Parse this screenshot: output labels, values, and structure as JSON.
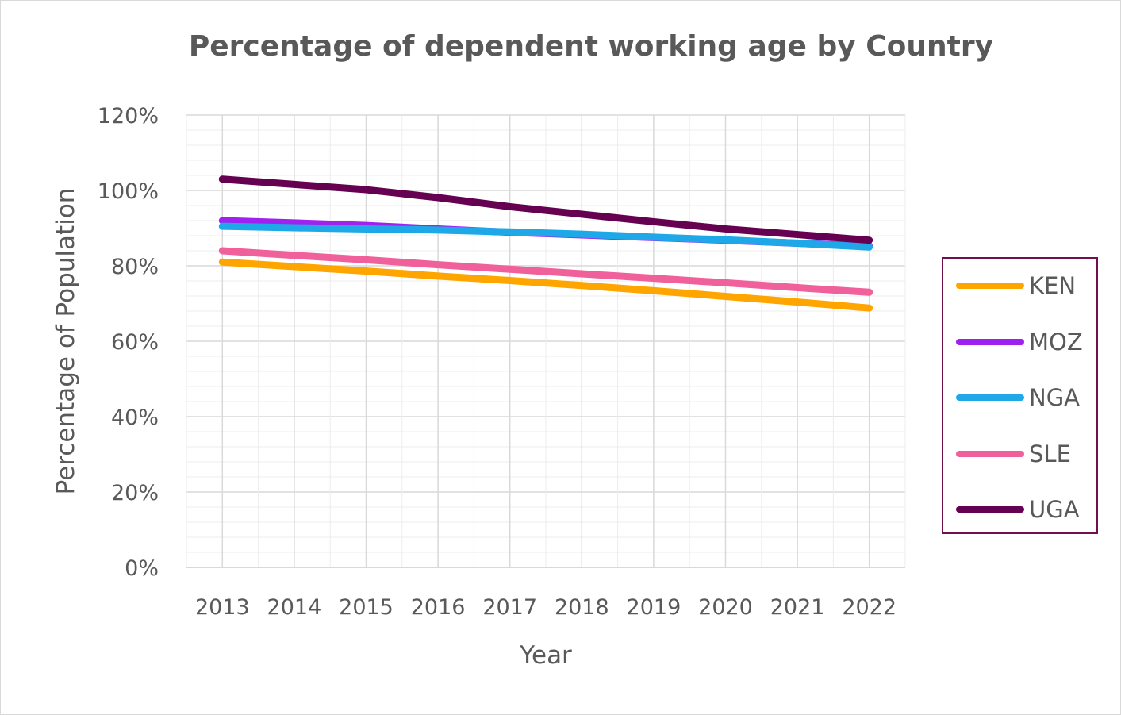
{
  "chart_data": {
    "type": "line",
    "title": "Percentage of dependent working age by Country",
    "xlabel": "Year",
    "ylabel": "Percentage of Population",
    "x": [
      "2013",
      "2014",
      "2015",
      "2016",
      "2017",
      "2018",
      "2019",
      "2020",
      "2021",
      "2022"
    ],
    "yticks": [
      "0%",
      "20%",
      "40%",
      "60%",
      "80%",
      "100%",
      "120%"
    ],
    "ylim": [
      0,
      120
    ],
    "grid": true,
    "legend_position": "right",
    "series": [
      {
        "name": "KEN",
        "color": "#ffa500",
        "values": [
          81,
          79.8,
          78.6,
          77.3,
          76.1,
          74.8,
          73.4,
          71.9,
          70.4,
          68.8
        ]
      },
      {
        "name": "MOZ",
        "color": "#a020f0",
        "values": [
          92,
          91.4,
          90.7,
          89.8,
          88.9,
          88.2,
          87.5,
          86.8,
          86.0,
          85.3
        ]
      },
      {
        "name": "NGA",
        "color": "#1ea8e8",
        "values": [
          90.5,
          90.1,
          89.8,
          89.5,
          89.0,
          88.4,
          87.6,
          86.9,
          86.0,
          85.0
        ]
      },
      {
        "name": "SLE",
        "color": "#f0609a",
        "values": [
          84,
          82.8,
          81.6,
          80.3,
          79.1,
          77.9,
          76.7,
          75.5,
          74.2,
          73.0
        ]
      },
      {
        "name": "UGA",
        "color": "#660050",
        "values": [
          103,
          101.6,
          100.2,
          98.1,
          95.7,
          93.7,
          91.7,
          89.8,
          88.3,
          86.8
        ]
      }
    ]
  }
}
